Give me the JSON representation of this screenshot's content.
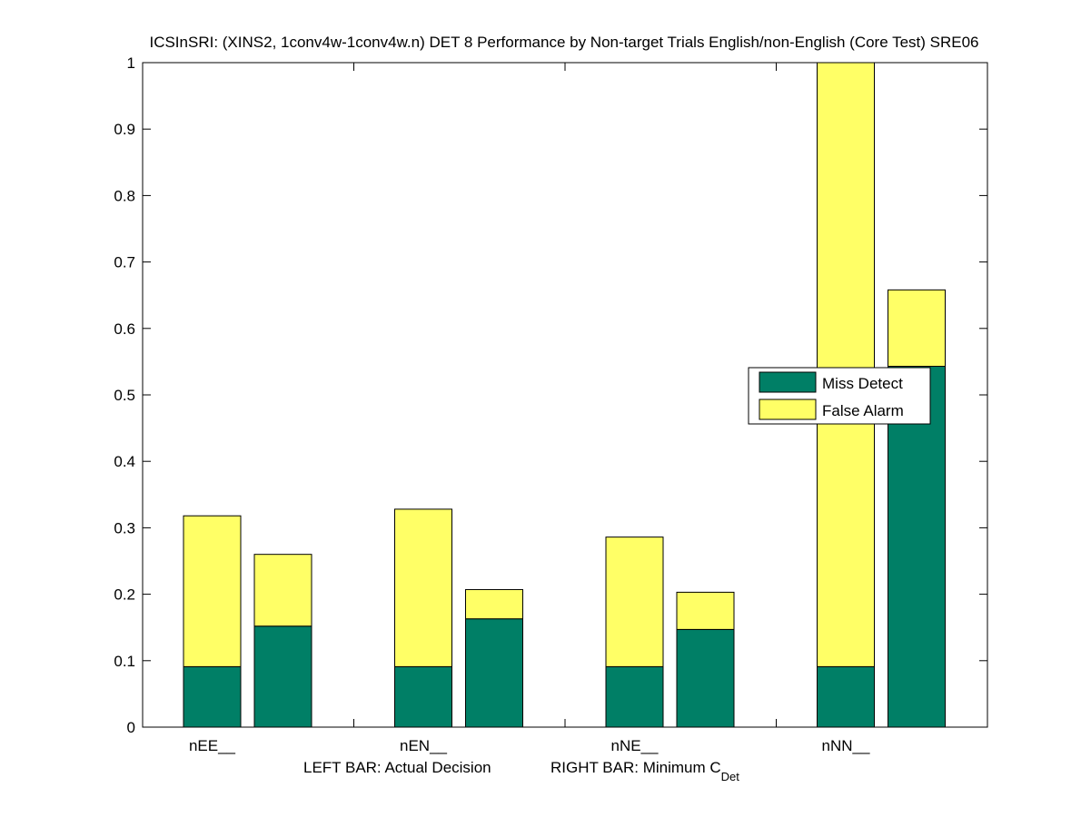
{
  "chart_data": {
    "type": "bar",
    "stacked": true,
    "title": "ICSInSRI: (XINS2, 1conv4w-1conv4w.n) DET 8 Performance by Non-target Trials English/non-English (Core Test) SRE06",
    "xlabel_left": "LEFT BAR: Actual Decision",
    "xlabel_right_main": "RIGHT BAR: Minimum C",
    "xlabel_right_sub": "Det",
    "ylabel": "",
    "ylim": [
      0,
      1
    ],
    "yticks": [
      0,
      0.1,
      0.2,
      0.3,
      0.4,
      0.5,
      0.6,
      0.7,
      0.8,
      0.9,
      1
    ],
    "ytick_labels": [
      "0",
      "0.1",
      "0.2",
      "0.3",
      "0.4",
      "0.5",
      "0.6",
      "0.7",
      "0.8",
      "0.9",
      "1"
    ],
    "grid": false,
    "categories": [
      "nEE__",
      "nEN__",
      "nNE__",
      "nNN__"
    ],
    "bars_per_category": [
      "Actual Decision",
      "Minimum C_Det"
    ],
    "series": [
      {
        "name": "Miss Detect",
        "color": "#007f66",
        "actual_decision": [
          0.091,
          0.091,
          0.091,
          0.091
        ],
        "minimum_cdet": [
          0.152,
          0.163,
          0.147,
          0.543
        ]
      },
      {
        "name": "False Alarm",
        "color": "#ffff66",
        "actual_decision": [
          0.227,
          0.237,
          0.195,
          0.909
        ],
        "minimum_cdet": [
          0.108,
          0.044,
          0.056,
          0.115
        ]
      }
    ],
    "totals": {
      "actual_decision": [
        0.318,
        0.328,
        0.286,
        1.0
      ],
      "minimum_cdet": [
        0.26,
        0.207,
        0.203,
        0.658
      ]
    },
    "legend": {
      "entries": [
        "Miss Detect",
        "False Alarm"
      ],
      "placement": "center-right"
    }
  }
}
